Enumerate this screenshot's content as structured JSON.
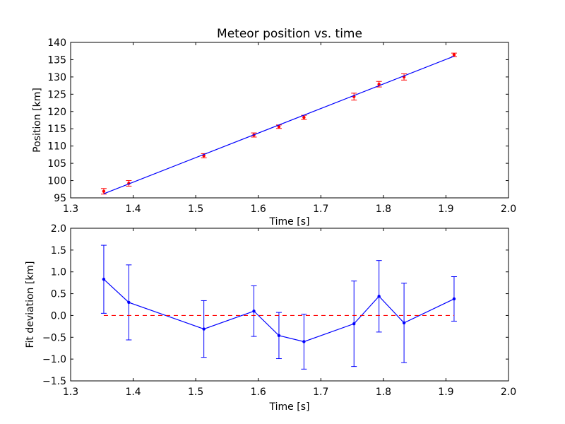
{
  "chart_data": [
    {
      "type": "scatter",
      "title": "Meteor position vs. time",
      "xlabel": "Time [s]",
      "ylabel": "Position [km]",
      "xlim": [
        1.3,
        2.0
      ],
      "ylim": [
        95,
        140
      ],
      "xticks": [
        "1.3",
        "1.4",
        "1.5",
        "1.6",
        "1.7",
        "1.8",
        "1.9",
        "2.0"
      ],
      "yticks": [
        "95",
        "100",
        "105",
        "110",
        "115",
        "120",
        "125",
        "130",
        "135",
        "140"
      ],
      "grid": false,
      "series": [
        {
          "kind": "points-with-errorbars",
          "color": "#ff0000",
          "x": [
            1.353,
            1.393,
            1.513,
            1.593,
            1.633,
            1.673,
            1.753,
            1.793,
            1.833,
            1.913
          ],
          "y": [
            96.9,
            99.2,
            107.2,
            113.2,
            115.6,
            118.3,
            124.3,
            127.9,
            130.0,
            136.4
          ],
          "yerr": [
            0.8,
            0.8,
            0.6,
            0.6,
            0.5,
            0.6,
            1.0,
            0.8,
            0.9,
            0.5
          ]
        },
        {
          "kind": "fit-line",
          "color": "#0000ff",
          "x": [
            1.353,
            1.913
          ],
          "y": [
            96.2,
            136.0
          ]
        }
      ]
    },
    {
      "type": "line",
      "title": "",
      "xlabel": "Time [s]",
      "ylabel": "Fit deviation [km]",
      "xlim": [
        1.3,
        2.0
      ],
      "ylim": [
        -1.5,
        2.0
      ],
      "xticks": [
        "1.3",
        "1.4",
        "1.5",
        "1.6",
        "1.7",
        "1.8",
        "1.9",
        "2.0"
      ],
      "yticks": [
        "−1.5",
        "−1.0",
        "−0.5",
        "0.0",
        "0.5",
        "1.0",
        "1.5",
        "2.0"
      ],
      "grid": false,
      "series": [
        {
          "kind": "line-with-errorbars",
          "color": "#0000ff",
          "x": [
            1.353,
            1.393,
            1.513,
            1.593,
            1.633,
            1.673,
            1.753,
            1.793,
            1.833,
            1.913
          ],
          "y": [
            0.83,
            0.3,
            -0.31,
            0.1,
            -0.46,
            -0.6,
            -0.19,
            0.44,
            -0.17,
            0.38
          ],
          "yerr": [
            0.78,
            0.86,
            0.65,
            0.58,
            0.53,
            0.63,
            0.98,
            0.82,
            0.91,
            0.51
          ]
        },
        {
          "kind": "reference-line",
          "color": "#ff0000",
          "style": "dashed",
          "x": [
            1.353,
            1.913
          ],
          "y": [
            0.0,
            0.0
          ]
        }
      ]
    }
  ]
}
